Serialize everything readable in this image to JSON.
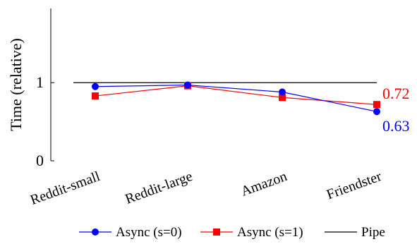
{
  "chart_data": {
    "type": "line",
    "ylabel": "Time (relative)",
    "xlabel": "",
    "categories": [
      "Reddit-small",
      "Reddit-large",
      "Amazon",
      "Friendster"
    ],
    "ylim": [
      0,
      1.95
    ],
    "yticks": [
      0,
      1
    ],
    "ytick_labels": [
      "0",
      "1"
    ],
    "grid": false,
    "legend_position": "bottom",
    "series": [
      {
        "name": "Async (s=0)",
        "marker": "circle",
        "color": "#0000ff",
        "values": [
          0.95,
          0.97,
          0.88,
          0.63
        ]
      },
      {
        "name": "Async (s=1)",
        "marker": "square",
        "color": "#ff0000",
        "values": [
          0.83,
          0.96,
          0.81,
          0.72
        ]
      },
      {
        "name": "Pipe",
        "marker": "none",
        "color": "#000000",
        "values": [
          1.0,
          1.0,
          1.0,
          1.0
        ]
      }
    ],
    "annotations": [
      {
        "text": "0.72",
        "color": "#ff0000",
        "series": "Async (s=1)",
        "category": "Friendster"
      },
      {
        "text": "0.63",
        "color": "#0000ff",
        "series": "Async (s=0)",
        "category": "Friendster"
      }
    ]
  }
}
